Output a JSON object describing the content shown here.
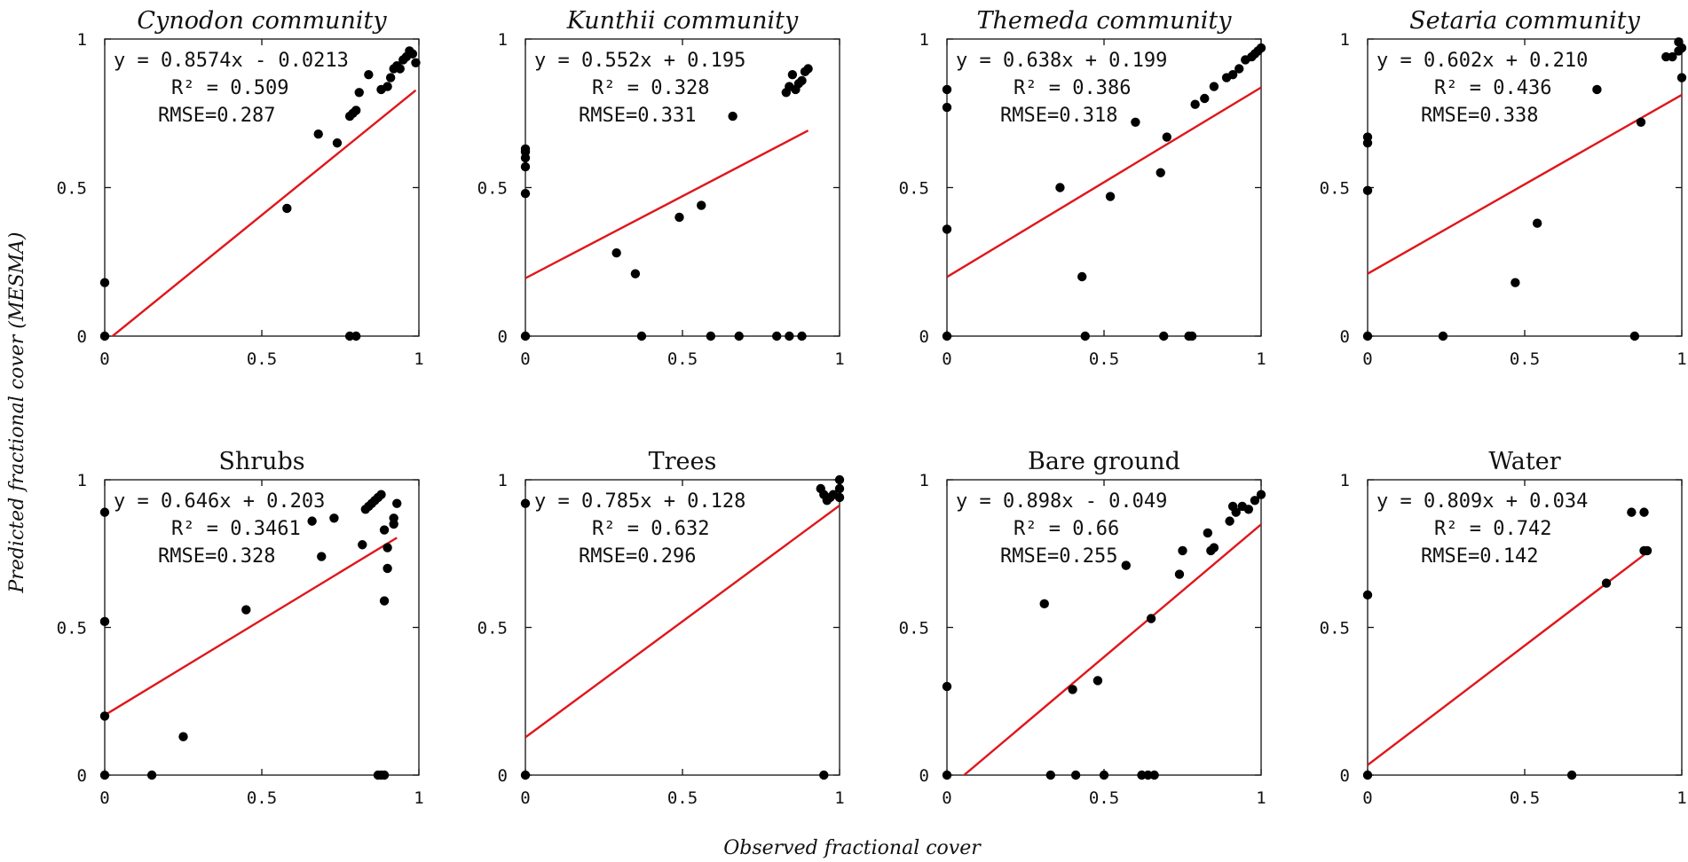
{
  "figure": {
    "ylabel": "Predicted fractional cover (MESMA)",
    "xlabel": "Observed fractional cover"
  },
  "chart_data": [
    {
      "type": "scatter",
      "title": "Cynodon community",
      "italic_title": true,
      "xlim": [
        0,
        1
      ],
      "ylim": [
        0,
        1
      ],
      "xticks": [
        "0",
        "0.5",
        "1"
      ],
      "yticks": [
        "0",
        "0.5",
        "1"
      ],
      "fit": {
        "slope": 0.8574,
        "intercept": -0.0213
      },
      "annotations": {
        "equation": "y = 0.8574x - 0.0213",
        "r2": "R² = 0.509",
        "rmse": "RMSE=0.287"
      },
      "x": [
        0,
        0,
        0.58,
        0.68,
        0.74,
        0.78,
        0.79,
        0.8,
        0.81,
        0.84,
        0.88,
        0.9,
        0.91,
        0.92,
        0.93,
        0.94,
        0.95,
        0.96,
        0.97,
        0.98,
        0.99,
        0.78,
        0.8
      ],
      "y": [
        0.18,
        0,
        0.43,
        0.68,
        0.65,
        0.74,
        0.75,
        0.76,
        0.82,
        0.88,
        0.83,
        0.84,
        0.87,
        0.9,
        0.91,
        0.9,
        0.93,
        0.94,
        0.96,
        0.95,
        0.92,
        0,
        0
      ]
    },
    {
      "type": "scatter",
      "title": "Kunthii community",
      "italic_title": true,
      "xlim": [
        0,
        1
      ],
      "ylim": [
        0,
        1
      ],
      "xticks": [
        "0",
        "0.5",
        "1"
      ],
      "yticks": [
        "0",
        "0.5",
        "1"
      ],
      "fit": {
        "slope": 0.552,
        "intercept": 0.195
      },
      "annotations": {
        "equation": "y = 0.552x + 0.195",
        "r2": "R² = 0.328",
        "rmse": "RMSE=0.331"
      },
      "x": [
        0,
        0,
        0,
        0,
        0,
        0,
        0.29,
        0.35,
        0.37,
        0.49,
        0.56,
        0.59,
        0.66,
        0.68,
        0.8,
        0.83,
        0.84,
        0.85,
        0.86,
        0.87,
        0.88,
        0.89,
        0.9,
        0.84,
        0.88
      ],
      "y": [
        0.62,
        0.63,
        0.6,
        0.57,
        0.48,
        0,
        0.28,
        0.21,
        0,
        0.4,
        0.44,
        0,
        0.74,
        0,
        0,
        0.82,
        0.84,
        0.88,
        0.83,
        0.85,
        0.86,
        0.89,
        0.9,
        0,
        0
      ]
    },
    {
      "type": "scatter",
      "title": "Themeda community",
      "italic_title": true,
      "xlim": [
        0,
        1
      ],
      "ylim": [
        0,
        1
      ],
      "xticks": [
        "0",
        "0.5",
        "1"
      ],
      "yticks": [
        "0",
        "0.5",
        "1"
      ],
      "fit": {
        "slope": 0.638,
        "intercept": 0.199
      },
      "annotations": {
        "equation": "y = 0.638x + 0.199",
        "r2": "R² = 0.386",
        "rmse": "RMSE=0.318"
      },
      "x": [
        0,
        0,
        0,
        0,
        0.36,
        0.43,
        0.44,
        0.52,
        0.6,
        0.68,
        0.69,
        0.7,
        0.77,
        0.78,
        0.79,
        0.82,
        0.85,
        0.89,
        0.91,
        0.93,
        0.95,
        0.97,
        0.98,
        0.99,
        1.0
      ],
      "y": [
        0.83,
        0.77,
        0.36,
        0,
        0.5,
        0.2,
        0,
        0.47,
        0.72,
        0.55,
        0,
        0.67,
        0,
        0,
        0.78,
        0.8,
        0.84,
        0.87,
        0.88,
        0.9,
        0.93,
        0.94,
        0.95,
        0.96,
        0.97
      ]
    },
    {
      "type": "scatter",
      "title": "Setaria community",
      "italic_title": true,
      "xlim": [
        0,
        1
      ],
      "ylim": [
        0,
        1
      ],
      "xticks": [
        "0",
        "0.5",
        "1"
      ],
      "yticks": [
        "0",
        "0.5",
        "1"
      ],
      "fit": {
        "slope": 0.602,
        "intercept": 0.21
      },
      "annotations": {
        "equation": "y = 0.602x + 0.210",
        "r2": "R² = 0.436",
        "rmse": "RMSE=0.338"
      },
      "x": [
        0,
        0,
        0,
        0,
        0.24,
        0.47,
        0.54,
        0.73,
        0.85,
        0.87,
        0.95,
        0.97,
        0.99,
        1.0,
        1.0,
        0.99
      ],
      "y": [
        0.67,
        0.65,
        0.49,
        0,
        0,
        0.18,
        0.38,
        0.83,
        0,
        0.72,
        0.94,
        0.94,
        0.96,
        0.97,
        0.87,
        0.99
      ]
    },
    {
      "type": "scatter",
      "title": "Shrubs",
      "italic_title": false,
      "xlim": [
        0,
        1
      ],
      "ylim": [
        0,
        1
      ],
      "xticks": [
        "0",
        "0.5",
        "1"
      ],
      "yticks": [
        "0",
        "0.5",
        "1"
      ],
      "fit": {
        "slope": 0.646,
        "intercept": 0.203
      },
      "annotations": {
        "equation": "y = 0.646x + 0.203",
        "r2": "R² = 0.3461",
        "rmse": "RMSE=0.328"
      },
      "x": [
        0,
        0,
        0,
        0,
        0.15,
        0.25,
        0.45,
        0.66,
        0.69,
        0.73,
        0.82,
        0.83,
        0.84,
        0.85,
        0.86,
        0.87,
        0.87,
        0.88,
        0.89,
        0.89,
        0.9,
        0.9,
        0.92,
        0.92,
        0.93,
        0.88,
        0.89
      ],
      "y": [
        0.89,
        0.52,
        0.2,
        0,
        0,
        0.13,
        0.56,
        0.86,
        0.74,
        0.87,
        0.78,
        0.9,
        0.91,
        0.92,
        0.93,
        0.94,
        0,
        0.95,
        0.83,
        0.59,
        0.77,
        0.7,
        0.85,
        0.87,
        0.92,
        0,
        0
      ]
    },
    {
      "type": "scatter",
      "title": "Trees",
      "italic_title": false,
      "xlim": [
        0,
        1
      ],
      "ylim": [
        0,
        1
      ],
      "xticks": [
        "0",
        "0.5",
        "1"
      ],
      "yticks": [
        "0",
        "0.5",
        "1"
      ],
      "fit": {
        "slope": 0.785,
        "intercept": 0.128
      },
      "annotations": {
        "equation": "y = 0.785x + 0.128",
        "r2": "R² = 0.632",
        "rmse": "RMSE=0.296"
      },
      "x": [
        0,
        0,
        0.94,
        0.95,
        0.96,
        0.97,
        0.98,
        1.0,
        1.0,
        1.0,
        0.95
      ],
      "y": [
        0.92,
        0,
        0.97,
        0.95,
        0.93,
        0.94,
        0.95,
        1.0,
        0.97,
        0.94,
        0
      ]
    },
    {
      "type": "scatter",
      "title": "Bare ground",
      "italic_title": false,
      "xlim": [
        0,
        1
      ],
      "ylim": [
        0,
        1
      ],
      "xticks": [
        "0",
        "0.5",
        "1"
      ],
      "yticks": [
        "0",
        "0.5",
        "1"
      ],
      "fit": {
        "slope": 0.898,
        "intercept": -0.049
      },
      "annotations": {
        "equation": "y = 0.898x - 0.049",
        "r2": "R² = 0.66",
        "rmse": "RMSE=0.255"
      },
      "x": [
        0,
        0,
        0.31,
        0.33,
        0.4,
        0.41,
        0.48,
        0.5,
        0.57,
        0.62,
        0.64,
        0.65,
        0.66,
        0.74,
        0.75,
        0.83,
        0.84,
        0.85,
        0.9,
        0.91,
        0.92,
        0.94,
        0.96,
        0.98,
        1.0
      ],
      "y": [
        0.3,
        0,
        0.58,
        0,
        0.29,
        0,
        0.32,
        0,
        0.71,
        0,
        0,
        0.53,
        0,
        0.68,
        0.76,
        0.82,
        0.76,
        0.77,
        0.86,
        0.91,
        0.89,
        0.91,
        0.9,
        0.93,
        0.95
      ]
    },
    {
      "type": "scatter",
      "title": "Water",
      "italic_title": false,
      "xlim": [
        0,
        1
      ],
      "ylim": [
        0,
        1
      ],
      "xticks": [
        "0",
        "0.5",
        "1"
      ],
      "yticks": [
        "0",
        "0.5",
        "1"
      ],
      "fit": {
        "slope": 0.809,
        "intercept": 0.034
      },
      "annotations": {
        "equation": "y = 0.809x + 0.034",
        "r2": "R² = 0.742",
        "rmse": "RMSE=0.142"
      },
      "x": [
        0,
        0,
        0.65,
        0.76,
        0.84,
        0.88,
        0.89,
        0.88
      ],
      "y": [
        0.61,
        0,
        0,
        0.65,
        0.89,
        0.89,
        0.76,
        0.76
      ]
    }
  ]
}
